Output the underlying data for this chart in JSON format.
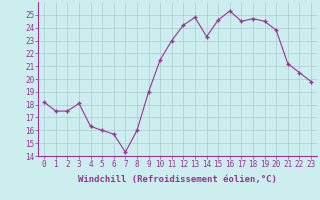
{
  "x": [
    0,
    1,
    2,
    3,
    4,
    5,
    6,
    7,
    8,
    9,
    10,
    11,
    12,
    13,
    14,
    15,
    16,
    17,
    18,
    19,
    20,
    21,
    22,
    23
  ],
  "y": [
    18.2,
    17.5,
    17.5,
    18.1,
    16.3,
    16.0,
    15.7,
    14.3,
    16.0,
    19.0,
    21.5,
    23.0,
    24.2,
    24.8,
    23.3,
    24.6,
    25.3,
    24.5,
    24.7,
    24.5,
    23.8,
    21.2,
    20.5,
    19.8
  ],
  "line_color": "#993399",
  "marker_color": "#993399",
  "bg_color": "#cceeee",
  "grid_color": "#aacccc",
  "xlabel": "Windchill (Refroidissement éolien,°C)",
  "ylim": [
    14,
    26
  ],
  "xlim": [
    -0.5,
    23.5
  ],
  "yticks": [
    14,
    15,
    16,
    17,
    18,
    19,
    20,
    21,
    22,
    23,
    24,
    25
  ],
  "xticks": [
    0,
    1,
    2,
    3,
    4,
    5,
    6,
    7,
    8,
    9,
    10,
    11,
    12,
    13,
    14,
    15,
    16,
    17,
    18,
    19,
    20,
    21,
    22,
    23
  ],
  "tick_label_fontsize": 5.5,
  "xlabel_fontsize": 6.5
}
